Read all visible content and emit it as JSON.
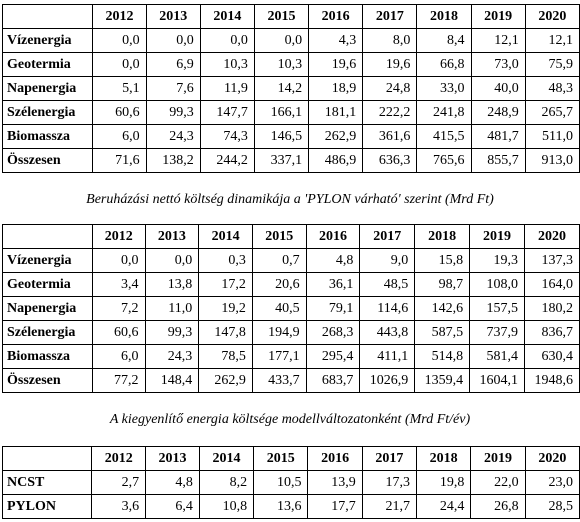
{
  "years": [
    "2012",
    "2013",
    "2014",
    "2015",
    "2016",
    "2017",
    "2018",
    "2019",
    "2020"
  ],
  "table1": {
    "rows": [
      {
        "label": "Vízenergia",
        "values": [
          "0,0",
          "0,0",
          "0,0",
          "0,0",
          "4,3",
          "8,0",
          "8,4",
          "12,1",
          "12,1"
        ]
      },
      {
        "label": "Geotermia",
        "values": [
          "0,0",
          "6,9",
          "10,3",
          "10,3",
          "19,6",
          "19,6",
          "66,8",
          "73,0",
          "75,9"
        ]
      },
      {
        "label": "Napenergia",
        "values": [
          "5,1",
          "7,6",
          "11,9",
          "14,2",
          "18,9",
          "24,8",
          "33,0",
          "40,0",
          "48,3"
        ]
      },
      {
        "label": "Szélenergia",
        "values": [
          "60,6",
          "99,3",
          "147,7",
          "166,1",
          "181,1",
          "222,2",
          "241,8",
          "248,9",
          "265,7"
        ]
      },
      {
        "label": "Biomassza",
        "values": [
          "6,0",
          "24,3",
          "74,3",
          "146,5",
          "262,9",
          "361,6",
          "415,5",
          "481,7",
          "511,0"
        ]
      },
      {
        "label": "Összesen",
        "values": [
          "71,6",
          "138,2",
          "244,2",
          "337,1",
          "486,9",
          "636,3",
          "765,6",
          "855,7",
          "913,0"
        ]
      }
    ]
  },
  "caption2": "Beruházási nettó költség dinamikája a 'PYLON várható' szerint (Mrd Ft)",
  "table2": {
    "rows": [
      {
        "label": "Vízenergia",
        "values": [
          "0,0",
          "0,0",
          "0,3",
          "0,7",
          "4,8",
          "9,0",
          "15,8",
          "19,3",
          "137,3"
        ]
      },
      {
        "label": "Geotermia",
        "values": [
          "3,4",
          "13,8",
          "17,2",
          "20,6",
          "36,1",
          "48,5",
          "98,7",
          "108,0",
          "164,0"
        ]
      },
      {
        "label": "Napenergia",
        "values": [
          "7,2",
          "11,0",
          "19,2",
          "40,5",
          "79,1",
          "114,6",
          "142,6",
          "157,5",
          "180,2"
        ]
      },
      {
        "label": "Szélenergia",
        "values": [
          "60,6",
          "99,3",
          "147,8",
          "194,9",
          "268,3",
          "443,8",
          "587,5",
          "737,9",
          "836,7"
        ]
      },
      {
        "label": "Biomassza",
        "values": [
          "6,0",
          "24,3",
          "78,5",
          "177,1",
          "295,4",
          "411,1",
          "514,8",
          "581,4",
          "630,4"
        ]
      },
      {
        "label": "Összesen",
        "values": [
          "77,2",
          "148,4",
          "262,9",
          "433,7",
          "683,7",
          "1026,9",
          "1359,4",
          "1604,1",
          "1948,6"
        ]
      }
    ]
  },
  "caption3": "A kiegyenlítő energia költsége modellváltozatonként (Mrd Ft/év)",
  "table3": {
    "rows": [
      {
        "label": "NCST",
        "values": [
          "2,7",
          "4,8",
          "8,2",
          "10,5",
          "13,9",
          "17,3",
          "19,8",
          "22,0",
          "23,0"
        ]
      },
      {
        "label": "PYLON",
        "values": [
          "3,6",
          "6,4",
          "10,8",
          "13,6",
          "17,7",
          "21,7",
          "24,4",
          "26,8",
          "28,5"
        ]
      }
    ]
  }
}
